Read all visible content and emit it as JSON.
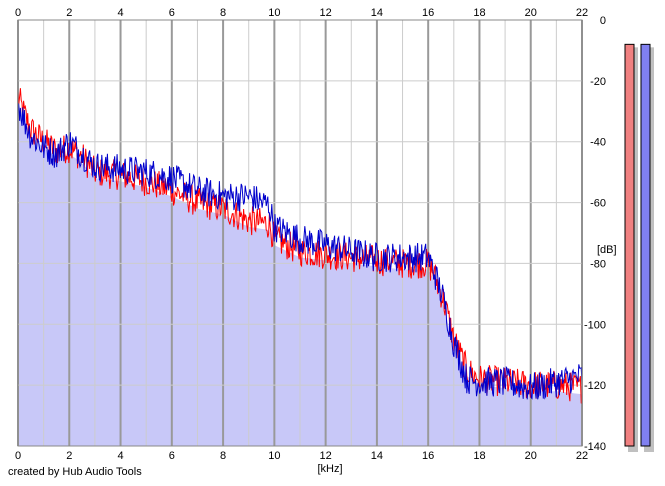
{
  "credit": "created by Hub Audio Tools",
  "colors": {
    "fill": "#c8c8f8",
    "channel_left": "#ff0000",
    "channel_right": "#0000cc",
    "grid_major": "#999999",
    "grid_minor": "#cccccc",
    "meter_left": "#f08080",
    "meter_right": "#8080f0"
  },
  "chart_data": {
    "type": "line",
    "xlabel": "[kHz]",
    "ylabel": "[dB]",
    "xlim": [
      0,
      22
    ],
    "ylim": [
      -140,
      0
    ],
    "x_ticks": [
      0,
      2,
      4,
      6,
      8,
      10,
      12,
      14,
      16,
      18,
      20,
      22
    ],
    "y_ticks": [
      0,
      -20,
      -40,
      -60,
      -80,
      -100,
      -120,
      -140
    ],
    "grid": true,
    "series": [
      {
        "color": "#ff0000",
        "x": [
          0,
          0.2,
          0.5,
          1,
          1.5,
          2,
          2.5,
          3,
          4,
          5,
          6,
          7,
          8,
          9,
          9.8,
          10,
          11,
          12,
          13,
          14,
          15,
          16,
          16.2,
          16.6,
          17,
          17.5,
          18,
          19,
          20,
          21,
          22
        ],
        "values": [
          -25,
          -30,
          -36,
          -40,
          -43,
          -42,
          -45,
          -50,
          -51,
          -53,
          -56,
          -60,
          -62,
          -66,
          -67,
          -72,
          -76,
          -77,
          -78,
          -79,
          -80,
          -80,
          -83,
          -92,
          -105,
          -115,
          -118,
          -119,
          -120,
          -120,
          -121
        ]
      },
      {
        "color": "#0000cc",
        "x": [
          0,
          0.2,
          0.5,
          1,
          1.5,
          2,
          2.5,
          3,
          4,
          5,
          6,
          7,
          8,
          9,
          9.8,
          10,
          11,
          12,
          13,
          14,
          15,
          16,
          16.2,
          16.6,
          17,
          17.5,
          18,
          19,
          20,
          21,
          22
        ],
        "values": [
          -27,
          -32,
          -38,
          -42,
          -44,
          -40,
          -44,
          -48,
          -49,
          -50,
          -52,
          -56,
          -58,
          -58,
          -61,
          -68,
          -72,
          -74,
          -76,
          -78,
          -78,
          -78,
          -82,
          -92,
          -106,
          -118,
          -119,
          -119,
          -121,
          -119,
          -117
        ]
      }
    ],
    "meters": [
      {
        "level_db": -8
      },
      {
        "level_db": -8
      }
    ]
  }
}
